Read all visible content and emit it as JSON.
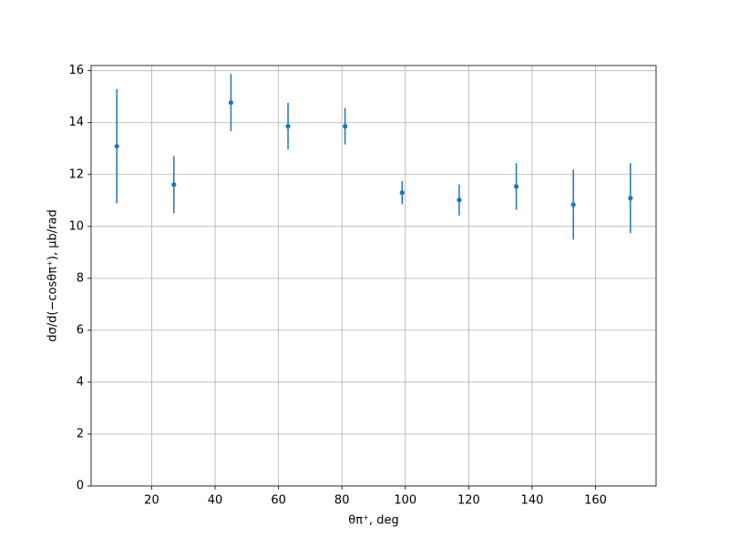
{
  "chart_data": {
    "type": "errorbar",
    "x_label": "θπ⁺, deg",
    "y_label": "dσ/d(−cosθπ⁺), μb/rad",
    "x": [
      9,
      27,
      45,
      63,
      81,
      99,
      117,
      135,
      153,
      171
    ],
    "series": [
      {
        "color": "#1f77b4",
        "values": [
          13.09,
          11.61,
          14.77,
          13.86,
          13.86,
          11.3,
          11.02,
          11.54,
          10.84,
          11.09
        ],
        "errors": [
          2.2,
          1.1,
          1.1,
          0.9,
          0.7,
          0.45,
          0.6,
          0.9,
          1.35,
          1.35
        ]
      }
    ],
    "xlim": [
      0.9,
      179.1
    ],
    "xticks": [
      20,
      40,
      60,
      80,
      100,
      120,
      140,
      160
    ],
    "ylim": [
      0,
      16.2
    ],
    "yticks": [
      0,
      2,
      4,
      6,
      8,
      10,
      12,
      14,
      16
    ],
    "grid": true
  }
}
